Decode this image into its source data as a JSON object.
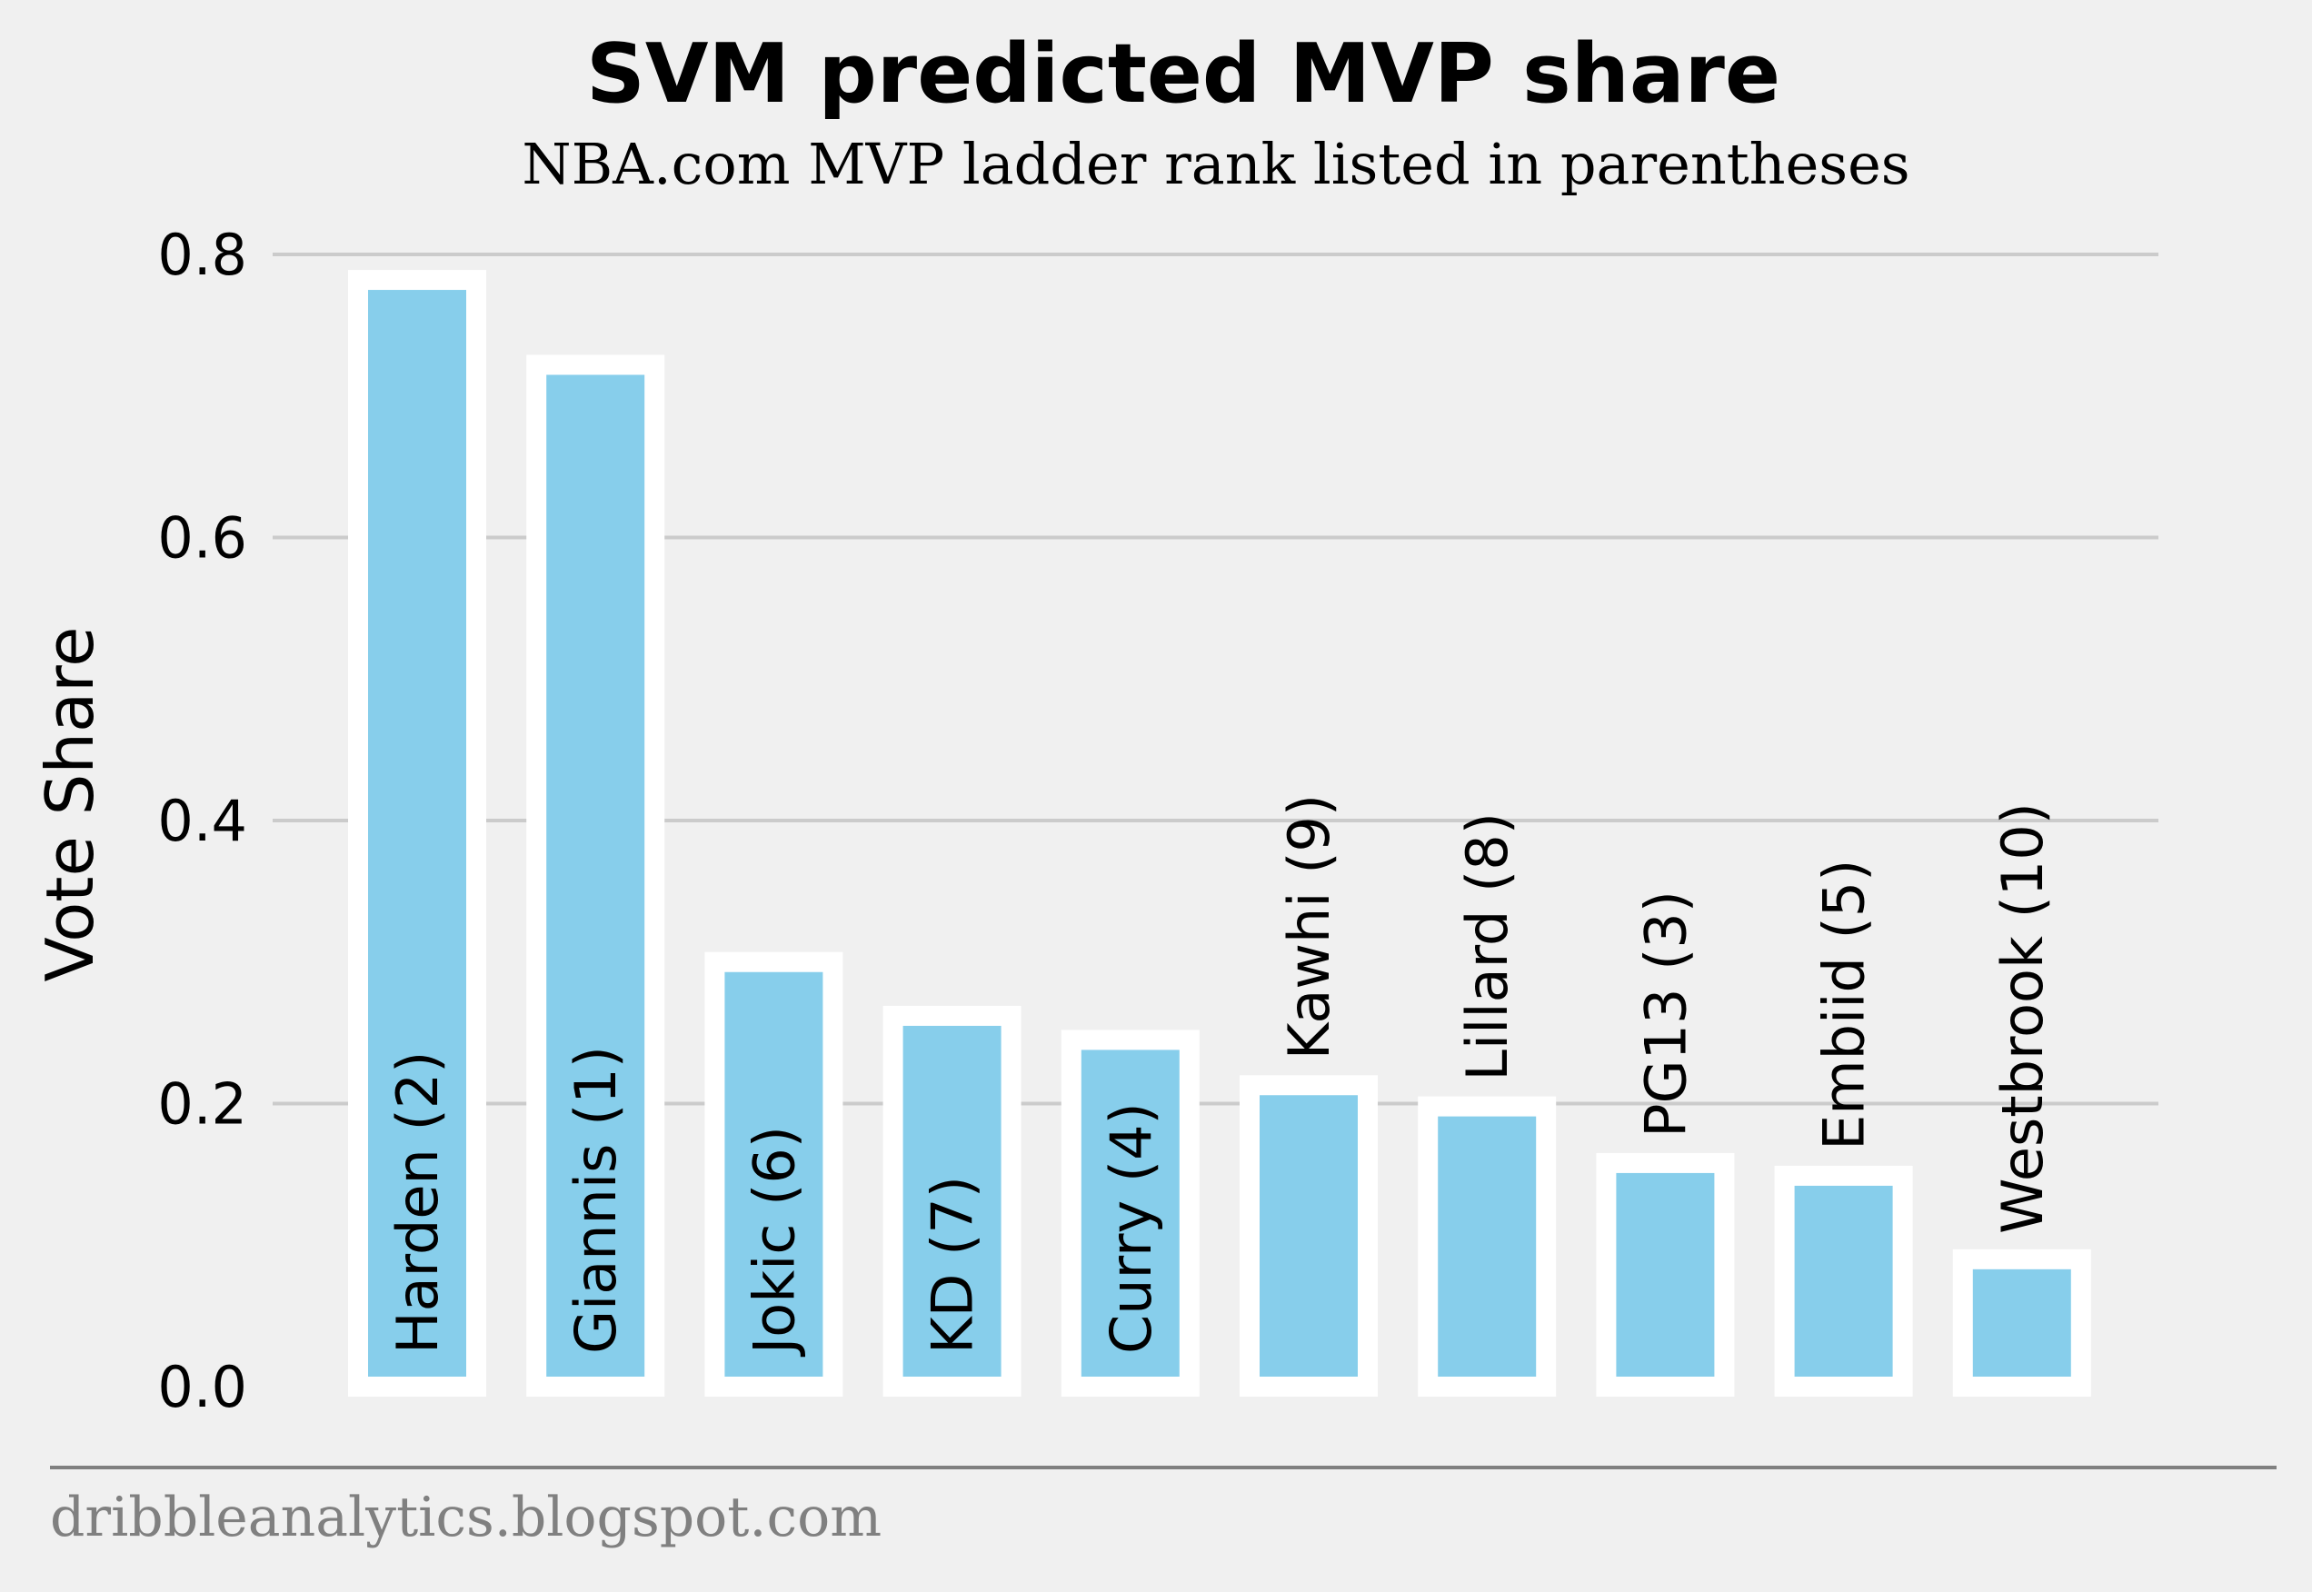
{
  "chart_data": {
    "type": "bar",
    "title": "SVM predicted MVP share",
    "subtitle": "NBA.com MVP ladder rank listed in parentheses",
    "xlabel": "",
    "ylabel": "Vote Share",
    "ylim": [
      0,
      0.8
    ],
    "yticks": [
      "0.0",
      "0.2",
      "0.4",
      "0.6",
      "0.8"
    ],
    "grid": "horizontal",
    "categories": [
      "Harden (2)",
      "Giannis (1)",
      "Jokic (6)",
      "KD (7)",
      "Curry (4)",
      "Kawhi (9)",
      "Lillard (8)",
      "PG13 (3)",
      "Embiid (5)",
      "Westbrook (10)"
    ],
    "values": [
      0.782,
      0.722,
      0.3,
      0.262,
      0.245,
      0.213,
      0.198,
      0.158,
      0.149,
      0.09
    ],
    "bar_color": "#87ceeb",
    "bar_edge_color": "#ffffff",
    "background_color": "#f0f0f0",
    "grid_color": "#cbcbcb"
  },
  "footer": {
    "source": "dribbleanalytics.blogspot.com"
  }
}
